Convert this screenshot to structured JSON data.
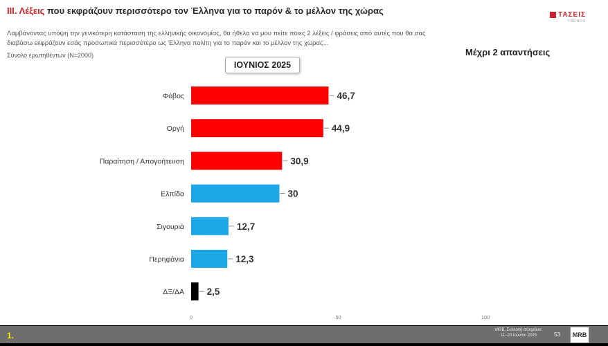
{
  "header": {
    "title_accent": "ΙΙΙ. Λέξεις",
    "title_rest": " που εκφράζουν περισσότερο τον Έλληνα για το παρόν & το μέλλον της χώρας",
    "subtitle": "Λαμβάνοντας υπόψη την γενικότερη κατάσταση της ελληνικής οικονομίας, θα ήθελα να μου πείτε ποιες 2 λέξεις / φράσεις από αυτές που θα σας διαβάσω εκφράζουν εσάς προσωπικά περισσότερο ως Έλληνα πολίτη για το παρόν και το μέλλον της χώρας...",
    "base": "Σύνολο ερωτηθέντων (Ν=2000)",
    "logo_text": "ΤΑΣΕΙΣ",
    "logo_sub": "TRENDS"
  },
  "period_label": "ΙΟΥΝΙΟΣ 2025",
  "note": "Μέχρι 2 απαντήσεις",
  "chart_data": {
    "type": "bar",
    "orientation": "horizontal",
    "categories": [
      "Φόβος",
      "Οργή",
      "Παραίτηση / Απογοήτευση",
      "Ελπίδα",
      "Σιγουριά",
      "Περηφάνια",
      "ΔΞ/ΔΑ"
    ],
    "values": [
      46.7,
      44.9,
      30.9,
      30,
      12.7,
      12.3,
      2.5
    ],
    "value_labels": [
      "46,7",
      "44,9",
      "30,9",
      "30",
      "12,7",
      "12,3",
      "2,5"
    ],
    "bar_colors": [
      "#ff0000",
      "#ff0000",
      "#ff0000",
      "#1ea7e6",
      "#1ea7e6",
      "#1ea7e6",
      "#000000"
    ],
    "xlim": [
      0,
      100
    ],
    "xticks": [
      0,
      50,
      100
    ],
    "xtick_labels": [
      "0",
      "50",
      "100"
    ],
    "grid": false,
    "legend": "none"
  },
  "footer": {
    "page_label": "1.",
    "source_line1": "MRB, Συλλογή στοιχείων:",
    "source_line2": "11–20 Ιουνίου 2025",
    "slide_number": "53",
    "mrb_logo": "MRB"
  }
}
